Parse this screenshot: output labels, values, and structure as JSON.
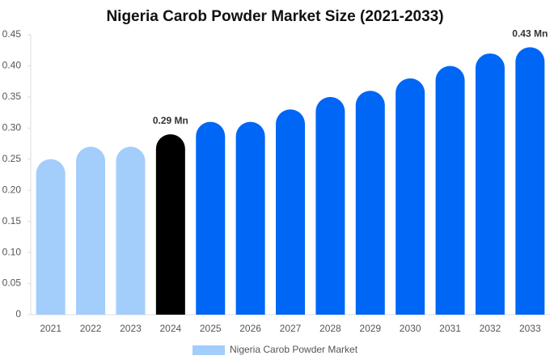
{
  "chart_data": {
    "type": "bar",
    "title": "Nigeria Carob Powder Market Size (2021-2033)",
    "categories": [
      "2021",
      "2022",
      "2023",
      "2024",
      "2025",
      "2026",
      "2027",
      "2028",
      "2029",
      "2030",
      "2031",
      "2032",
      "2033"
    ],
    "series": [
      {
        "name": "Nigeria Carob Powder Market",
        "color": "#a3cdfb",
        "colors": [
          "#a3cdfb",
          "#a3cdfb",
          "#a3cdfb",
          "#000000",
          "#0066f5",
          "#0066f5",
          "#0066f5",
          "#0066f5",
          "#0066f5",
          "#0066f5",
          "#0066f5",
          "#0066f5",
          "#0066f5"
        ],
        "values": [
          0.25,
          0.27,
          0.27,
          0.29,
          0.31,
          0.31,
          0.33,
          0.35,
          0.36,
          0.38,
          0.4,
          0.42,
          0.43
        ],
        "value_labels": [
          null,
          null,
          null,
          "0.29 Mn",
          null,
          null,
          null,
          null,
          null,
          null,
          null,
          null,
          "0.43 Mn"
        ]
      }
    ],
    "ylim": [
      0,
      0.45
    ],
    "yticks": [
      0,
      0.05,
      {
        "value": 0.1,
        "label": "0.10"
      },
      0.15,
      {
        "value": 0.2,
        "label": "0.20"
      },
      0.25,
      {
        "value": 0.3,
        "label": "0.30"
      },
      0.35,
      {
        "value": 0.4,
        "label": "0.40"
      },
      0.45
    ],
    "grid": false
  }
}
